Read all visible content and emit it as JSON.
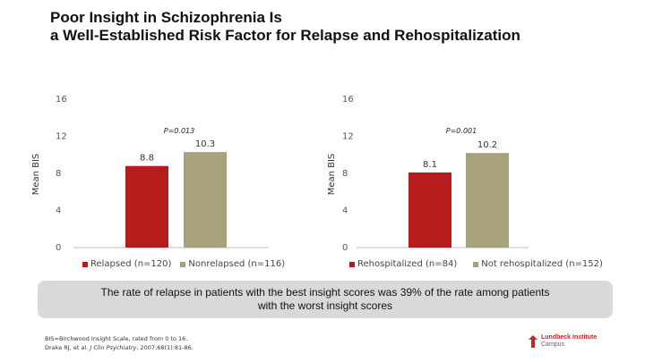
{
  "title": {
    "line1": "Poor Insight in Schizophrenia Is",
    "line2": "a Well-Established Risk Factor for Relapse and Rehospitalization"
  },
  "colors": {
    "red": "#b71c1c",
    "olive": "#a8a27c"
  },
  "chart_data": [
    {
      "type": "bar",
      "title": "",
      "ylabel": "Mean BIS",
      "ylim": [
        0,
        16
      ],
      "yticks": [
        0,
        4,
        8,
        12,
        16
      ],
      "p_value": "P=0.013",
      "series": [
        {
          "name": "Relapsed (n=120)",
          "value": 8.8,
          "label": "8.8",
          "color": "#b71c1c"
        },
        {
          "name": "Nonrelapsed (n=116)",
          "value": 10.3,
          "label": "10.3",
          "color": "#a8a27c"
        }
      ]
    },
    {
      "type": "bar",
      "title": "",
      "ylabel": "Mean BIS",
      "ylim": [
        0,
        16
      ],
      "yticks": [
        0,
        4,
        8,
        12,
        16
      ],
      "p_value": "P=0.001",
      "series": [
        {
          "name": "Rehospitalized (n=84)",
          "value": 8.1,
          "label": "8.1",
          "color": "#b71c1c"
        },
        {
          "name": "Not rehospitalized (n=152)",
          "value": 10.2,
          "label": "10.2",
          "color": "#a8a27c"
        }
      ]
    }
  ],
  "callout": {
    "text": "The rate of relapse in patients with the best insight scores was 39% of the rate among patients with the worst insight scores"
  },
  "footnote": {
    "line1": "BIS=Birchwood Insight Scale, rated from 0 to 16.",
    "line2_prefix": "Drake RJ, et al. ",
    "line2_journal": "J Clin Psychiatry",
    "line2_suffix": ". 2007;68(1):81-86."
  },
  "logo": {
    "line1": "Lundbeck Institute",
    "line2": "Campus"
  }
}
